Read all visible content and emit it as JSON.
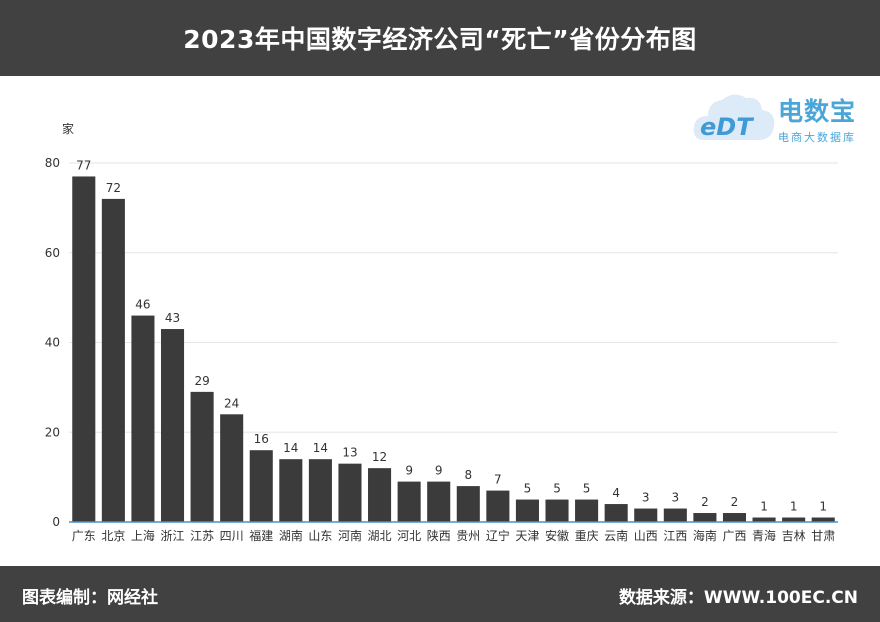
{
  "header": {
    "title": "2023年中国数字经济公司“死亡”省份分布图"
  },
  "footer": {
    "left": "图表编制：网经社",
    "right": "数据来源：WWW.100EC.CN"
  },
  "logo": {
    "main": "电数宝",
    "sub": "电商大数据库",
    "mark": "eDT"
  },
  "chart_data": {
    "type": "bar",
    "title": "2023年中国数字经济公司“死亡”省份分布图",
    "ylabel": "家",
    "xlabel": "",
    "ylim": [
      0,
      80
    ],
    "yticks": [
      0,
      20,
      40,
      60,
      80
    ],
    "grid": true,
    "bar_color": "#3b3b3b",
    "categories": [
      "广东",
      "北京",
      "上海",
      "浙江",
      "江苏",
      "四川",
      "福建",
      "湖南",
      "山东",
      "河南",
      "湖北",
      "河北",
      "陕西",
      "贵州",
      "辽宁",
      "天津",
      "安徽",
      "重庆",
      "云南",
      "山西",
      "江西",
      "海南",
      "广西",
      "青海",
      "吉林",
      "甘肃"
    ],
    "values": [
      77,
      72,
      46,
      43,
      29,
      24,
      16,
      14,
      14,
      13,
      12,
      9,
      9,
      8,
      7,
      5,
      5,
      5,
      4,
      3,
      3,
      2,
      2,
      1,
      1,
      1
    ]
  }
}
